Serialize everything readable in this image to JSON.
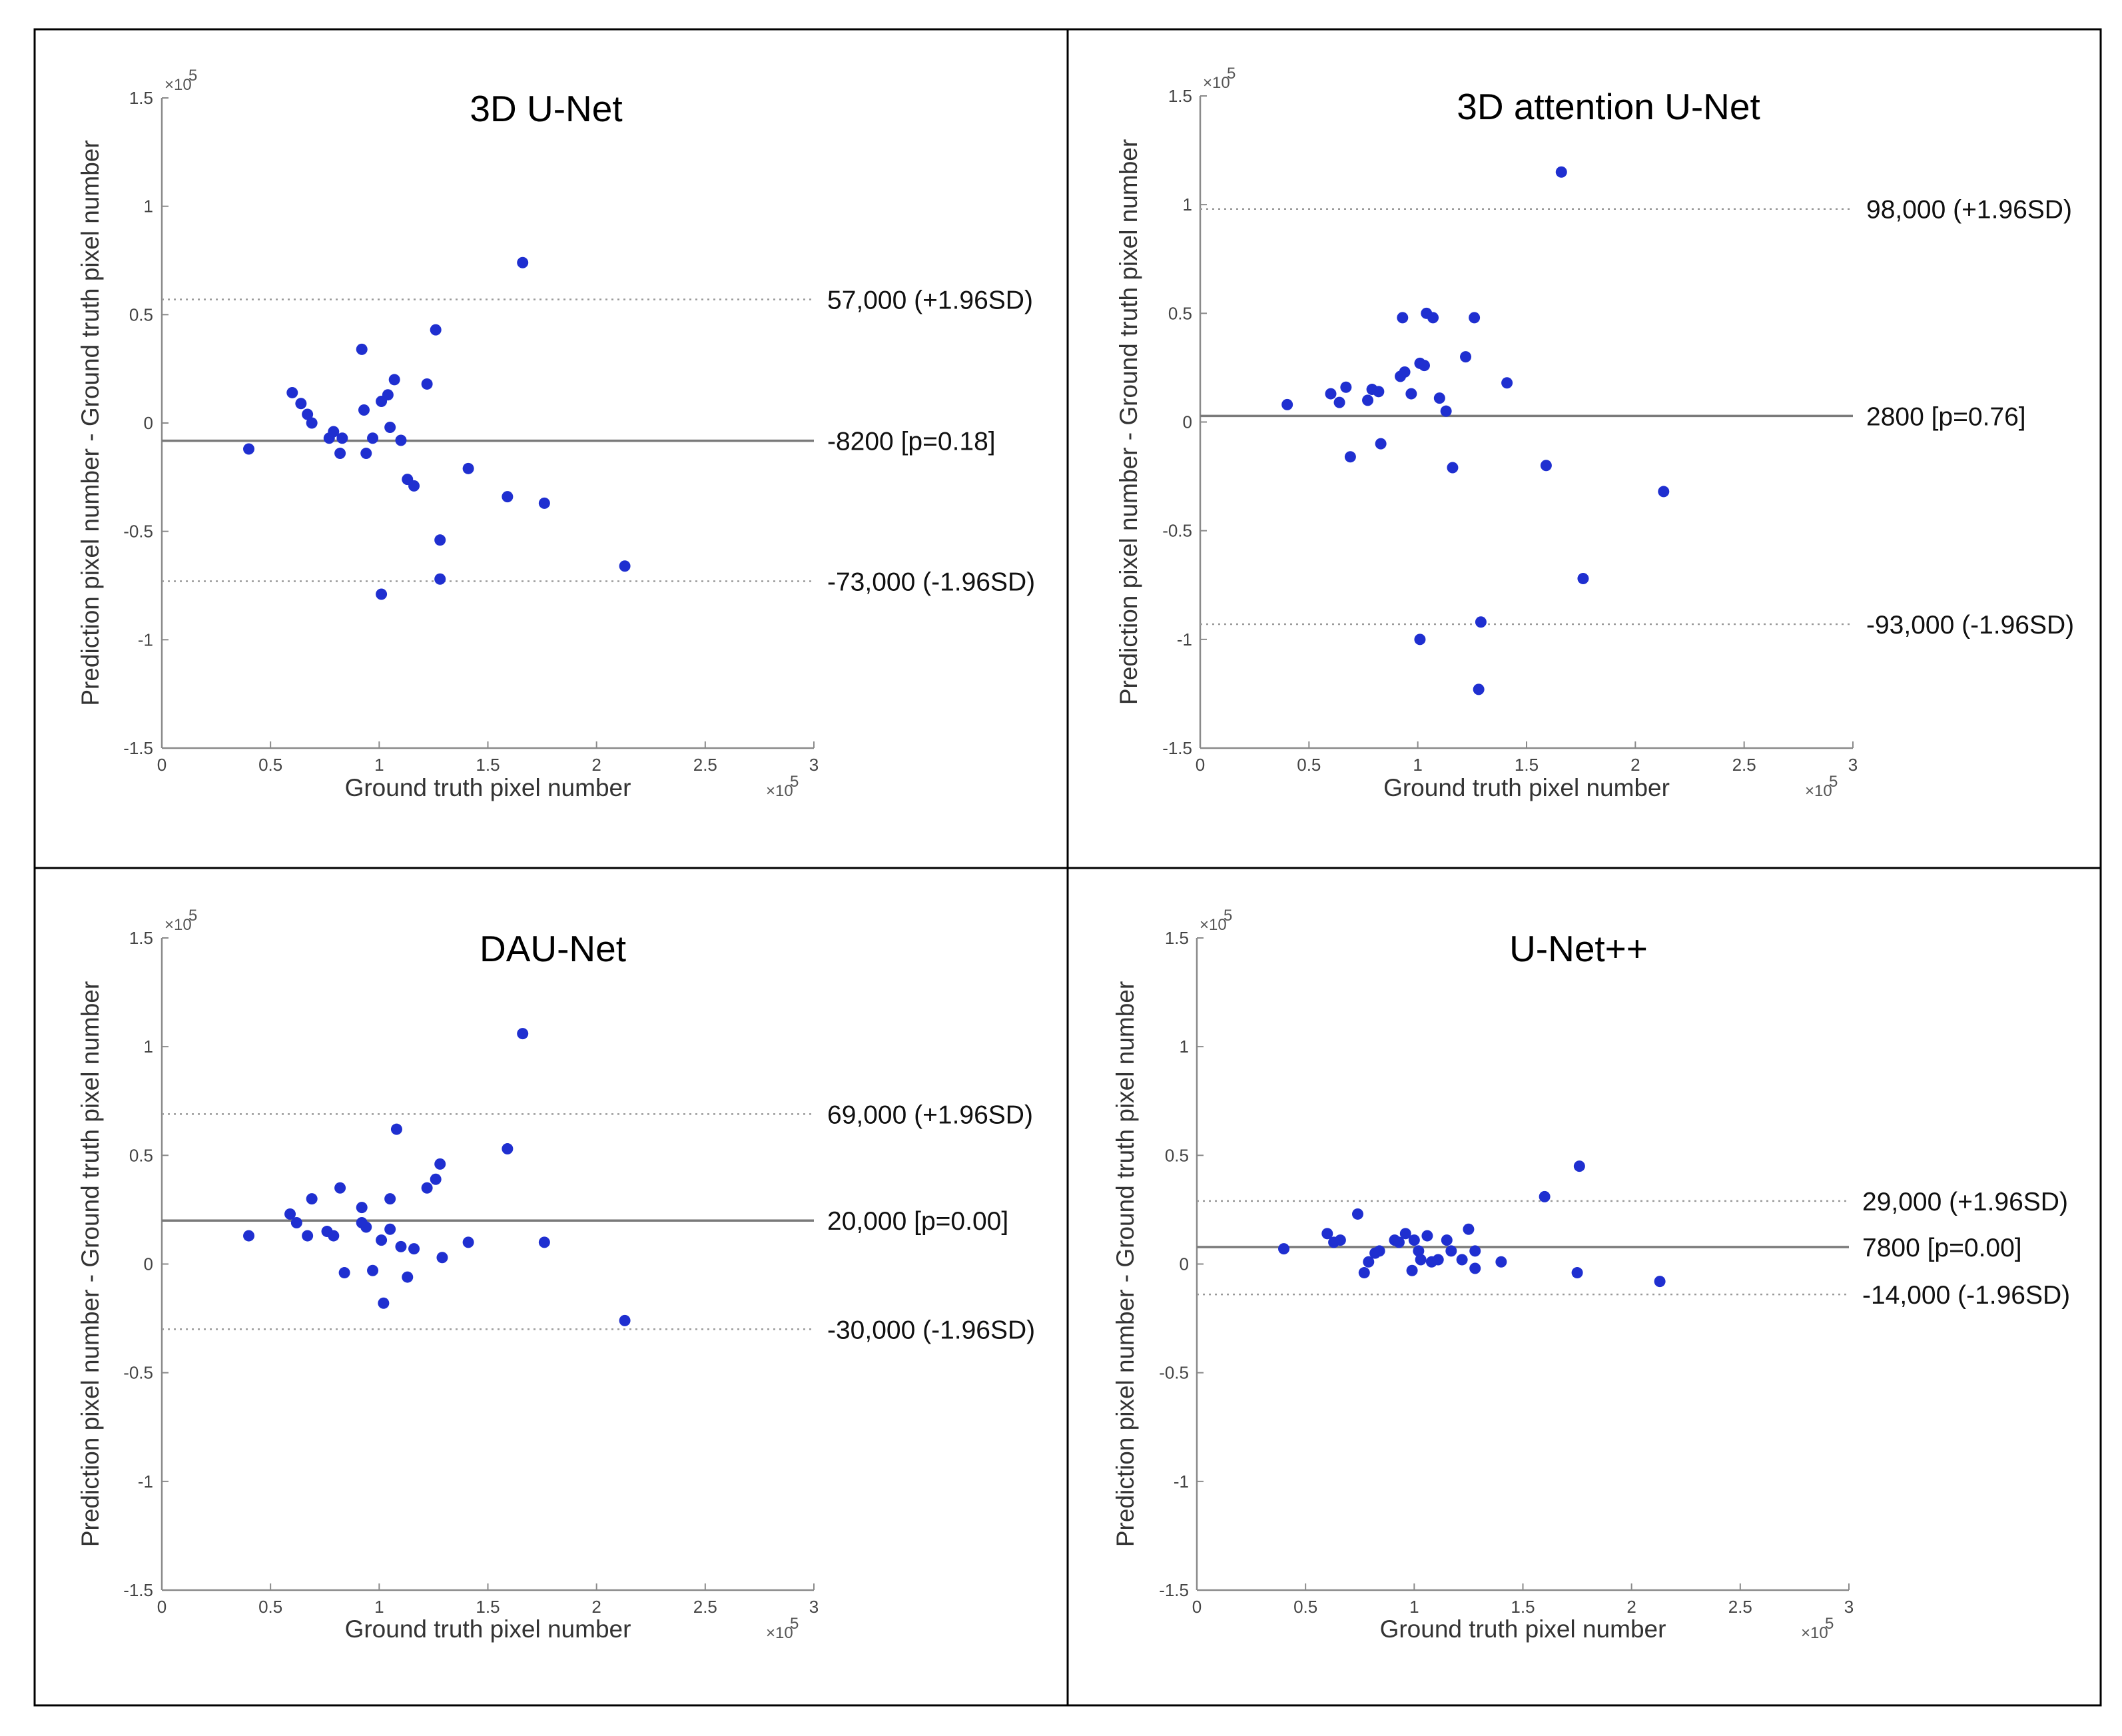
{
  "colors": {
    "point": "#1f2fd0",
    "mean_line": "#7a7a7a",
    "limit_line": "#9a9a9a",
    "axis": "#8a8a8a",
    "frame": "#000000"
  },
  "shared_axes": {
    "xlabel": "Ground truth pixel number",
    "ylabel": "Prediction pixel number - Ground truth pixel number",
    "x_exponent": "×10",
    "y_exponent": "×10",
    "exponent_power": "5",
    "xlim": [
      0,
      3
    ],
    "ylim": [
      -1.5,
      1.5
    ],
    "x_ticks": [
      0,
      0.5,
      1,
      1.5,
      2,
      2.5,
      3
    ],
    "x_tick_labels": [
      "0",
      "0.5",
      "1",
      "1.5",
      "2",
      "2.5",
      "3"
    ],
    "y_ticks": [
      1.5,
      1,
      0.5,
      0,
      -0.5,
      -1,
      -1.5
    ],
    "y_tick_labels": [
      "1.5",
      "1",
      "0.5",
      "0",
      "-0.5",
      "-1",
      "-1.5"
    ]
  },
  "chart_data": [
    {
      "type": "scatter",
      "title": "3D U-Net",
      "mean": -0.082,
      "upper": 0.57,
      "lower": -0.73,
      "mean_label": "-8200 [p=0.18]",
      "upper_label": "57,000 (+1.96SD)",
      "lower_label": "-73,000 (-1.96SD)",
      "points": [
        [
          0.4,
          -0.12
        ],
        [
          0.6,
          0.14
        ],
        [
          0.64,
          0.09
        ],
        [
          0.67,
          0.04
        ],
        [
          0.69,
          0.0
        ],
        [
          0.77,
          -0.07
        ],
        [
          0.79,
          -0.04
        ],
        [
          0.82,
          -0.14
        ],
        [
          0.83,
          -0.07
        ],
        [
          0.92,
          0.34
        ],
        [
          0.93,
          0.06
        ],
        [
          0.94,
          -0.14
        ],
        [
          0.97,
          -0.07
        ],
        [
          1.01,
          0.1
        ],
        [
          1.04,
          0.13
        ],
        [
          1.05,
          -0.02
        ],
        [
          1.07,
          0.2
        ],
        [
          1.1,
          -0.08
        ],
        [
          1.13,
          -0.26
        ],
        [
          1.16,
          -0.29
        ],
        [
          1.22,
          0.18
        ],
        [
          1.26,
          0.43
        ],
        [
          1.28,
          -0.54
        ],
        [
          1.28,
          -0.72
        ],
        [
          1.41,
          -0.21
        ],
        [
          1.01,
          -0.79
        ],
        [
          1.59,
          -0.34
        ],
        [
          1.66,
          0.74
        ],
        [
          1.76,
          -0.37
        ],
        [
          2.13,
          -0.66
        ]
      ]
    },
    {
      "type": "scatter",
      "title": "3D attention U-Net",
      "mean": 0.028,
      "upper": 0.98,
      "lower": -0.93,
      "mean_label": "2800 [p=0.76]",
      "upper_label": "98,000 (+1.96SD)",
      "lower_label": "-93,000 (-1.96SD)",
      "points": [
        [
          0.4,
          0.08
        ],
        [
          0.6,
          0.13
        ],
        [
          0.64,
          0.09
        ],
        [
          0.67,
          0.16
        ],
        [
          0.69,
          -0.16
        ],
        [
          0.77,
          0.1
        ],
        [
          0.79,
          0.15
        ],
        [
          0.82,
          0.14
        ],
        [
          0.83,
          -0.1
        ],
        [
          0.92,
          0.21
        ],
        [
          0.93,
          0.48
        ],
        [
          0.94,
          0.23
        ],
        [
          0.97,
          0.13
        ],
        [
          1.01,
          0.27
        ],
        [
          1.03,
          0.26
        ],
        [
          1.04,
          0.5
        ],
        [
          1.07,
          0.48
        ],
        [
          1.1,
          0.11
        ],
        [
          1.13,
          0.05
        ],
        [
          1.16,
          -0.21
        ],
        [
          1.22,
          0.3
        ],
        [
          1.26,
          0.48
        ],
        [
          1.01,
          -1.0
        ],
        [
          1.29,
          -0.92
        ],
        [
          1.28,
          -1.23
        ],
        [
          1.41,
          0.18
        ],
        [
          1.59,
          -0.2
        ],
        [
          1.66,
          1.15
        ],
        [
          1.76,
          -0.72
        ],
        [
          2.13,
          -0.32
        ]
      ]
    },
    {
      "type": "scatter",
      "title": "DAU-Net",
      "mean": 0.2,
      "upper": 0.69,
      "lower": -0.3,
      "mean_label": "20,000 [p=0.00]",
      "upper_label": "69,000 (+1.96SD)",
      "lower_label": "-30,000 (-1.96SD)",
      "points": [
        [
          0.4,
          0.13
        ],
        [
          0.59,
          0.23
        ],
        [
          0.62,
          0.19
        ],
        [
          0.67,
          0.13
        ],
        [
          0.69,
          0.3
        ],
        [
          0.76,
          0.15
        ],
        [
          0.79,
          0.13
        ],
        [
          0.82,
          0.35
        ],
        [
          0.84,
          -0.04
        ],
        [
          0.92,
          0.26
        ],
        [
          0.92,
          0.19
        ],
        [
          0.94,
          0.17
        ],
        [
          0.97,
          -0.03
        ],
        [
          1.01,
          0.11
        ],
        [
          1.02,
          -0.18
        ],
        [
          1.05,
          0.3
        ],
        [
          1.05,
          0.16
        ],
        [
          1.08,
          0.62
        ],
        [
          1.1,
          0.08
        ],
        [
          1.13,
          -0.06
        ],
        [
          1.16,
          0.07
        ],
        [
          1.22,
          0.35
        ],
        [
          1.26,
          0.39
        ],
        [
          1.28,
          0.46
        ],
        [
          1.29,
          0.03
        ],
        [
          1.41,
          0.1
        ],
        [
          1.59,
          0.53
        ],
        [
          1.66,
          1.06
        ],
        [
          1.76,
          0.1
        ],
        [
          2.13,
          -0.26
        ]
      ]
    },
    {
      "type": "scatter",
      "title": "U-Net++",
      "mean": 0.078,
      "upper": 0.29,
      "lower": -0.14,
      "mean_label": "7800 [p=0.00]",
      "upper_label": "29,000 (+1.96SD)",
      "lower_label": "-14,000 (-1.96SD)",
      "points": [
        [
          0.4,
          0.07
        ],
        [
          0.6,
          0.14
        ],
        [
          0.63,
          0.1
        ],
        [
          0.66,
          0.11
        ],
        [
          0.74,
          0.23
        ],
        [
          0.77,
          -0.04
        ],
        [
          0.79,
          0.01
        ],
        [
          0.82,
          0.05
        ],
        [
          0.84,
          0.06
        ],
        [
          0.91,
          0.11
        ],
        [
          0.93,
          0.1
        ],
        [
          0.96,
          0.14
        ],
        [
          0.99,
          -0.03
        ],
        [
          1.0,
          0.11
        ],
        [
          1.02,
          0.06
        ],
        [
          1.03,
          0.02
        ],
        [
          1.06,
          0.13
        ],
        [
          1.08,
          0.01
        ],
        [
          1.11,
          0.02
        ],
        [
          1.15,
          0.11
        ],
        [
          1.17,
          0.06
        ],
        [
          1.22,
          0.02
        ],
        [
          1.25,
          0.16
        ],
        [
          1.28,
          -0.02
        ],
        [
          1.28,
          0.06
        ],
        [
          1.4,
          0.01
        ],
        [
          1.6,
          0.31
        ],
        [
          1.75,
          -0.04
        ],
        [
          1.76,
          0.45
        ],
        [
          2.13,
          -0.08
        ]
      ]
    }
  ]
}
